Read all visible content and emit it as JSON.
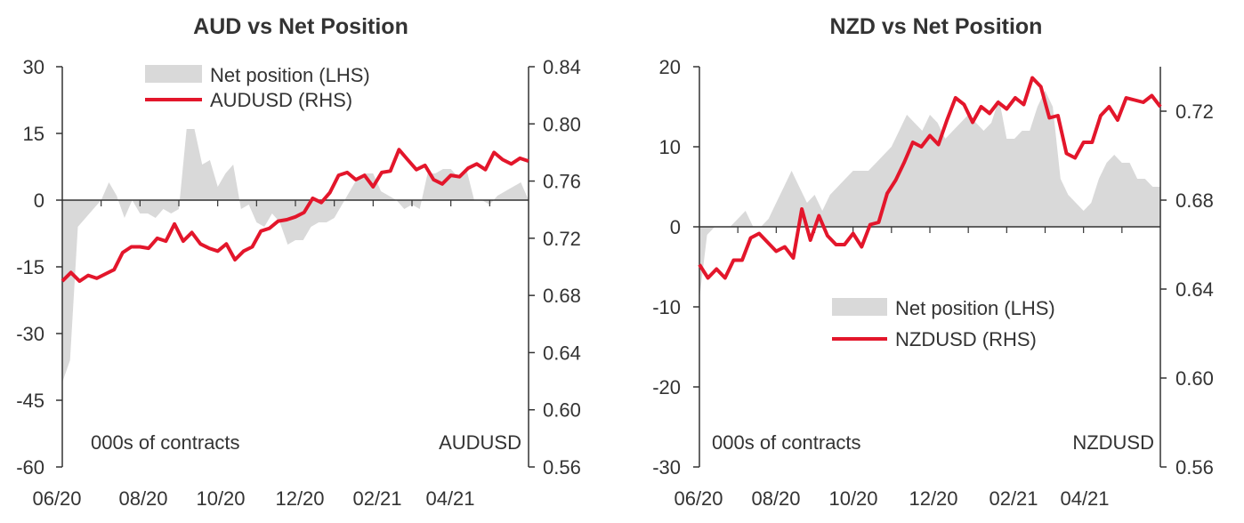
{
  "colors": {
    "area": "#d9d9d9",
    "line": "#e3162b",
    "axis": "#333333",
    "text": "#333333"
  },
  "chart_data": [
    {
      "type": "area+line",
      "title": "AUD vs Net Position",
      "x_ticks": [
        "06/20",
        "08/20",
        "10/20",
        "12/20",
        "02/21",
        "04/21"
      ],
      "x_range": [
        0,
        61
      ],
      "left_axis": {
        "ylim": [
          -60,
          30
        ],
        "ticks": [
          30,
          15,
          0,
          -15,
          -30,
          -45,
          -60
        ],
        "unit_label": "000s of contracts"
      },
      "right_axis": {
        "ylim": [
          0.56,
          0.84
        ],
        "ticks": [
          0.84,
          0.8,
          0.76,
          0.72,
          0.68,
          0.64,
          0.6,
          0.56
        ],
        "tick_labels": [
          "0.84",
          "0.80",
          "0.76",
          "0.72",
          "0.68",
          "0.64",
          "0.60",
          "0.56"
        ],
        "unit_label": "AUDUSD"
      },
      "legend": {
        "position": "top-left",
        "entries": [
          "Net position (LHS)",
          "AUDUSD (RHS)"
        ]
      },
      "series": [
        {
          "name": "Net position (LHS)",
          "kind": "area",
          "axis": "left",
          "values": [
            -41,
            -36,
            -6,
            -4,
            -2,
            0,
            4,
            1,
            -4,
            0,
            -3,
            -3,
            -4,
            -2,
            -3,
            -2,
            16,
            16,
            8,
            9,
            3,
            6,
            8,
            -2,
            -1,
            -5,
            -6,
            -3,
            -5,
            -10,
            -9,
            -9,
            -6,
            -5,
            -5,
            -4,
            -1,
            2,
            5,
            6,
            6,
            2,
            1,
            0,
            -2,
            -1,
            -2,
            6,
            6,
            7,
            7,
            5,
            7,
            0,
            0,
            -1,
            1,
            2,
            3,
            4,
            0
          ]
        },
        {
          "name": "AUDUSD (RHS)",
          "kind": "line",
          "axis": "right",
          "values": [
            0.69,
            0.696,
            0.69,
            0.694,
            0.692,
            0.695,
            0.698,
            0.71,
            0.714,
            0.714,
            0.713,
            0.72,
            0.718,
            0.73,
            0.718,
            0.724,
            0.716,
            0.713,
            0.711,
            0.716,
            0.705,
            0.711,
            0.714,
            0.725,
            0.727,
            0.732,
            0.733,
            0.735,
            0.738,
            0.748,
            0.745,
            0.752,
            0.764,
            0.766,
            0.761,
            0.764,
            0.756,
            0.766,
            0.767,
            0.782,
            0.775,
            0.768,
            0.771,
            0.761,
            0.758,
            0.764,
            0.763,
            0.769,
            0.772,
            0.768,
            0.78,
            0.775,
            0.772,
            0.776,
            0.774
          ]
        }
      ]
    },
    {
      "type": "area+line",
      "title": "NZD vs Net Position",
      "x_ticks": [
        "06/20",
        "08/20",
        "10/20",
        "12/20",
        "02/21",
        "04/21"
      ],
      "x_range": [
        0,
        61
      ],
      "left_axis": {
        "ylim": [
          -30,
          20
        ],
        "ticks": [
          20,
          10,
          0,
          -10,
          -20,
          -30
        ],
        "unit_label": "000s of contracts"
      },
      "right_axis": {
        "ylim": [
          0.56,
          0.74
        ],
        "ticks": [
          0.72,
          0.68,
          0.64,
          0.6,
          0.56
        ],
        "tick_labels": [
          "0.72",
          "0.68",
          "0.64",
          "0.60",
          "0.56"
        ],
        "unit_label": "NZDUSD"
      },
      "legend": {
        "position": "center-right",
        "entries": [
          "Net position (LHS)",
          "NZDUSD (RHS)"
        ]
      },
      "series": [
        {
          "name": "Net position (LHS)",
          "kind": "area",
          "axis": "left",
          "values": [
            -9,
            -1,
            0,
            0,
            0,
            1,
            2,
            0,
            0,
            1,
            3,
            5,
            7,
            5,
            3,
            4,
            2,
            4,
            5,
            6,
            7,
            7,
            7,
            8,
            9,
            10,
            12,
            14,
            13,
            12,
            14,
            13,
            11,
            12,
            13,
            14,
            13,
            12,
            13,
            16,
            11,
            11,
            12,
            12,
            15,
            17,
            15,
            6,
            4,
            3,
            2,
            3,
            6,
            8,
            9,
            8,
            8,
            6,
            6,
            5,
            5
          ]
        },
        {
          "name": "NZDUSD (RHS)",
          "kind": "line",
          "axis": "right",
          "values": [
            0.651,
            0.645,
            0.649,
            0.645,
            0.653,
            0.653,
            0.663,
            0.665,
            0.661,
            0.657,
            0.659,
            0.654,
            0.676,
            0.662,
            0.673,
            0.664,
            0.66,
            0.66,
            0.665,
            0.659,
            0.669,
            0.67,
            0.683,
            0.689,
            0.697,
            0.706,
            0.704,
            0.709,
            0.705,
            0.716,
            0.726,
            0.723,
            0.715,
            0.722,
            0.719,
            0.724,
            0.721,
            0.726,
            0.723,
            0.735,
            0.731,
            0.717,
            0.718,
            0.701,
            0.699,
            0.706,
            0.706,
            0.718,
            0.722,
            0.716,
            0.726,
            0.725,
            0.724,
            0.727,
            0.722
          ]
        }
      ]
    }
  ]
}
